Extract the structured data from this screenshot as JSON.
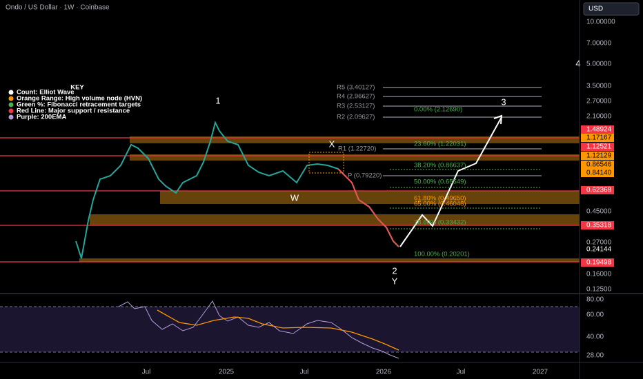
{
  "header": {
    "symbol": "Ondo / US Dollar · 1W · Coinbase",
    "currency": "USD"
  },
  "key": {
    "title": "KEY",
    "items": [
      "Count: Elliot Wave",
      "Orange Range: High volume node (HVN)",
      "Green %: Fibonacci retracement targets",
      "Red Line: Major support / resistance",
      "Purple: 200EMA"
    ]
  },
  "price_axis": {
    "labels": [
      "10.00000",
      "7.00000",
      "5.00000",
      "3.50000",
      "2.70000",
      "2.10000",
      "0.45000",
      "0.27000",
      "0.16000",
      "0.12500"
    ],
    "markers": [
      "1.48924",
      "1.17167",
      "1.12521",
      "1.12129",
      "0.86546",
      "0.84140",
      "0.62368",
      "0.35318",
      "0.24144",
      "0.19498"
    ]
  },
  "rsi_axis": [
    "80.00",
    "60.00",
    "40.00",
    "28.00"
  ],
  "time_axis": [
    "Jul",
    "2025",
    "Jul",
    "2026",
    "Jul",
    "2027"
  ],
  "waves": [
    "1",
    "X",
    "W",
    "2",
    "Y",
    "3",
    "4"
  ],
  "pivots": [
    "R5 (3.40127)",
    "R4 (2.96627)",
    "R3 (2.53127)",
    "R2 (2.09627)",
    "R1 (1.22720)",
    "P (0.79220)"
  ],
  "fib": [
    "0.00% (2.12690)",
    "23.60% (1.22031)",
    "38.20% (0.86637)",
    "50.00% (0.65549)",
    "61.80% (0.49650)",
    "65.00% (0.46048)",
    "78.60% (0.33432)",
    "100.00% (0.20201)"
  ]
}
